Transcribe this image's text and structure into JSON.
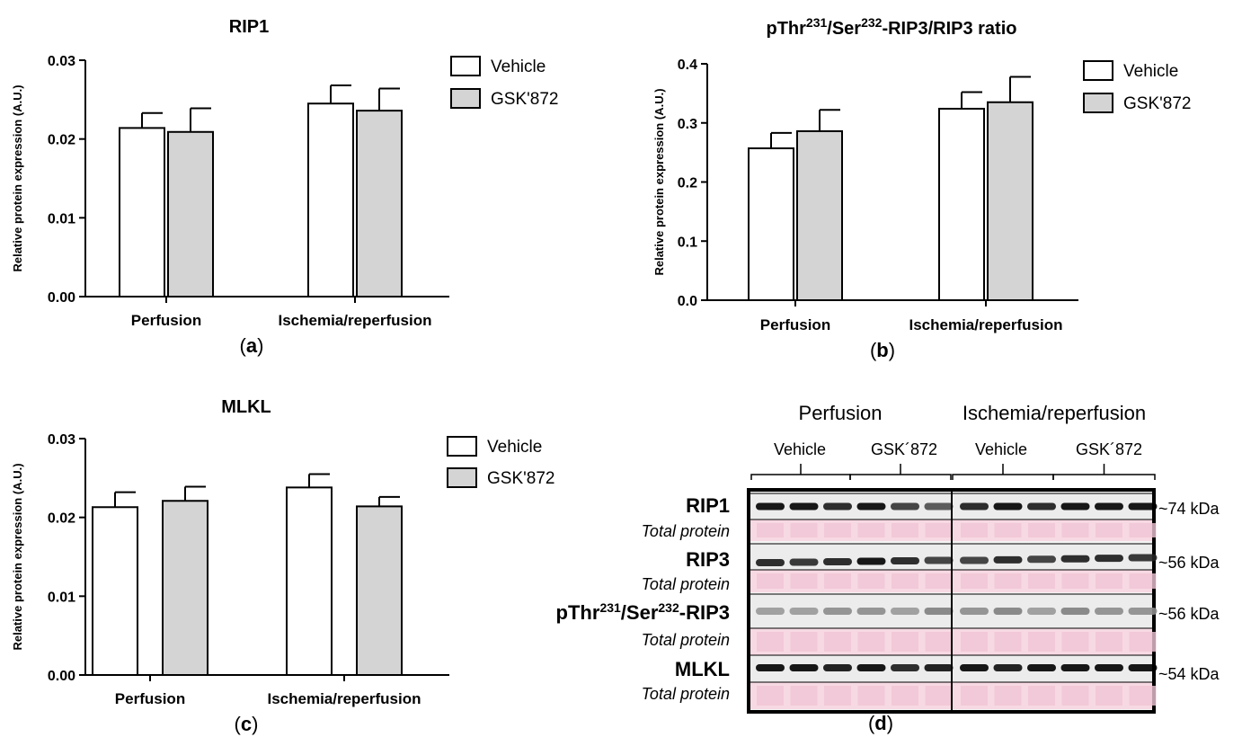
{
  "chart_data": [
    {
      "type": "bar",
      "panel_label": "a",
      "title": "RIP1",
      "ylabel": "Relative protein expression (A.U.)",
      "ylim": [
        0,
        0.03
      ],
      "yticks": [
        "0.00",
        "0.01",
        "0.02",
        "0.03"
      ],
      "categories": [
        "Perfusion",
        "Ischemia/reperfusion"
      ],
      "series": [
        {
          "name": "Vehicle",
          "values": [
            0.0214,
            0.0245
          ],
          "errors": [
            0.0019,
            0.0023
          ]
        },
        {
          "name": "GSK'872",
          "values": [
            0.0209,
            0.0236
          ],
          "errors": [
            0.003,
            0.0028
          ]
        }
      ],
      "legend": "right",
      "grid": false
    },
    {
      "type": "bar",
      "panel_label": "b",
      "title_parts": [
        "pThr",
        "231",
        "/Ser",
        "232",
        "-RIP3/RIP3 ratio"
      ],
      "ylabel": "Relative protein expression (A.U.)",
      "ylim": [
        0,
        0.4
      ],
      "yticks": [
        "0.0",
        "0.1",
        "0.2",
        "0.3",
        "0.4"
      ],
      "categories": [
        "Perfusion",
        "Ischemia/reperfusion"
      ],
      "series": [
        {
          "name": "Vehicle",
          "values": [
            0.257,
            0.324
          ],
          "errors": [
            0.026,
            0.028
          ]
        },
        {
          "name": "GSK'872",
          "values": [
            0.286,
            0.335
          ],
          "errors": [
            0.036,
            0.043
          ]
        }
      ],
      "legend": "right",
      "grid": false
    },
    {
      "type": "bar",
      "panel_label": "c",
      "title": "MLKL",
      "ylabel": "Relative protein expression (A.U.)",
      "ylim": [
        0,
        0.03
      ],
      "yticks": [
        "0.00",
        "0.01",
        "0.02",
        "0.03"
      ],
      "categories": [
        "Perfusion",
        "Ischemia/reperfusion"
      ],
      "series": [
        {
          "name": "Vehicle",
          "values": [
            0.0213,
            0.0238
          ],
          "errors": [
            0.0019,
            0.0017
          ]
        },
        {
          "name": "GSK'872",
          "values": [
            0.0221,
            0.0214
          ],
          "errors": [
            0.0018,
            0.0012
          ]
        }
      ],
      "legend": "right",
      "grid": false
    }
  ],
  "colors": {
    "vehicle_fill": "#ffffff",
    "gsk_fill": "#d4d4d4",
    "stroke": "#000000",
    "ponceau": "#f0c4d4",
    "ponceau_light": "#f7d9e3",
    "blot_bg": "#ececec"
  },
  "blot": {
    "panel_label": "d",
    "groups": [
      "Perfusion",
      "Ischemia/reperfusion"
    ],
    "subgroups": [
      "Vehicle",
      "GSK´872",
      "Vehicle",
      "GSK´872"
    ],
    "rows": [
      {
        "label": "RIP1",
        "sub": "Total protein",
        "kda": "~74 kDa"
      },
      {
        "label": "RIP3",
        "sub": "Total protein",
        "kda": "~56 kDa"
      },
      {
        "label_parts": [
          "pThr",
          "231",
          "/Ser",
          "232",
          "-RIP3"
        ],
        "sub": "Total protein",
        "kda": "~56 kDa"
      },
      {
        "label": "MLKL",
        "sub": "Total protein",
        "kda": "~54 kDa"
      }
    ]
  }
}
